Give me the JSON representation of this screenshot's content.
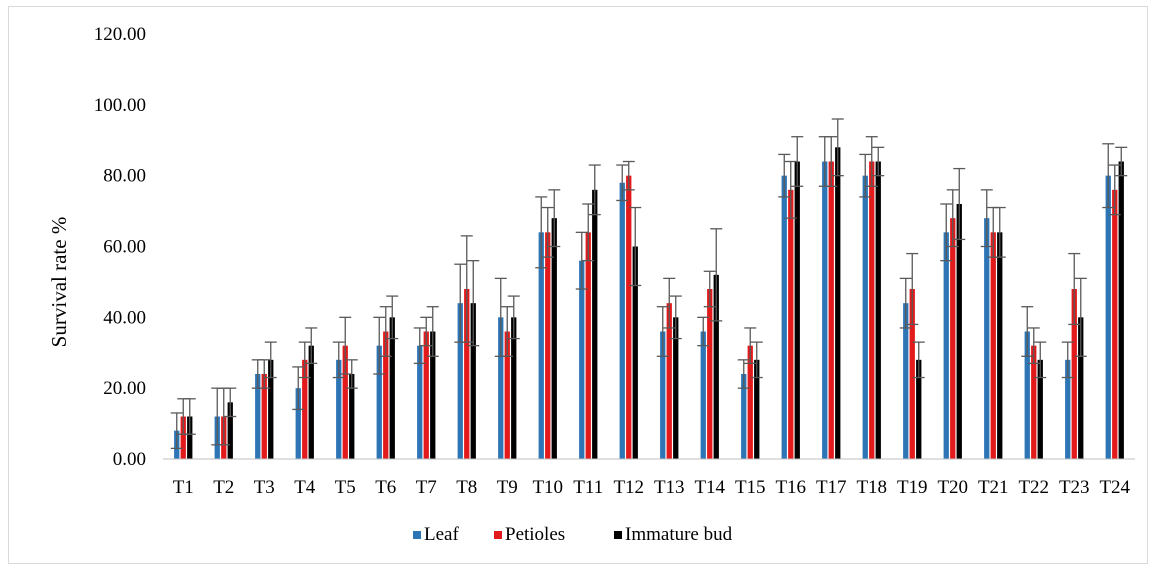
{
  "chart_data": {
    "type": "bar",
    "title": "",
    "xlabel": "",
    "ylabel": "Survival rate %",
    "ylim": [
      0,
      120
    ],
    "yticks": [
      "0.00",
      "20.00",
      "40.00",
      "60.00",
      "80.00",
      "100.00",
      "120.00"
    ],
    "ytick_values": [
      0,
      20,
      40,
      60,
      80,
      100,
      120
    ],
    "grid": false,
    "legend_position": "bottom",
    "categories": [
      "T1",
      "T2",
      "T3",
      "T4",
      "T5",
      "T6",
      "T7",
      "T8",
      "T9",
      "T10",
      "T11",
      "T12",
      "T13",
      "T14",
      "T15",
      "T16",
      "T17",
      "T18",
      "T19",
      "T20",
      "T21",
      "T22",
      "T23",
      "T24"
    ],
    "series": [
      {
        "name": "Leaf",
        "color": "#2e75b6",
        "values": [
          8,
          12,
          24,
          20,
          28,
          32,
          32,
          44,
          40,
          64,
          56,
          78,
          36,
          36,
          24,
          80,
          84,
          80,
          44,
          64,
          68,
          36,
          28,
          80
        ],
        "errors": [
          5,
          8,
          4,
          6,
          5,
          8,
          5,
          11,
          11,
          10,
          8,
          5,
          7,
          4,
          4,
          6,
          7,
          6,
          7,
          8,
          8,
          7,
          5,
          9
        ]
      },
      {
        "name": "Petioles",
        "color": "#e31a1c",
        "values": [
          12,
          12,
          24,
          28,
          32,
          36,
          36,
          48,
          36,
          64,
          64,
          80,
          44,
          48,
          32,
          76,
          84,
          84,
          48,
          68,
          64,
          32,
          48,
          76
        ],
        "errors": [
          5,
          8,
          4,
          5,
          8,
          7,
          4,
          15,
          7,
          7,
          8,
          4,
          7,
          5,
          5,
          8,
          7,
          7,
          10,
          8,
          7,
          5,
          10,
          7
        ]
      },
      {
        "name": "Immature bud",
        "color": "#000000",
        "values": [
          12,
          16,
          28,
          32,
          24,
          40,
          36,
          44,
          40,
          68,
          76,
          60,
          40,
          52,
          28,
          84,
          88,
          84,
          28,
          72,
          64,
          28,
          40,
          84
        ],
        "errors": [
          5,
          4,
          5,
          5,
          4,
          6,
          7,
          12,
          6,
          8,
          7,
          11,
          6,
          13,
          5,
          7,
          8,
          4,
          5,
          10,
          7,
          5,
          11,
          4
        ]
      }
    ]
  }
}
